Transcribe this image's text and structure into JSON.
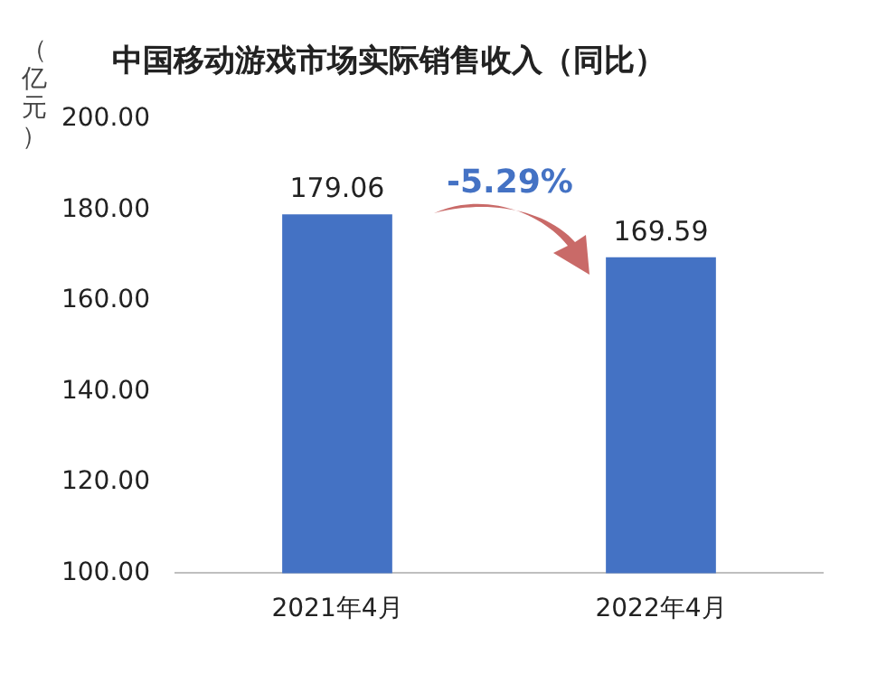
{
  "chart_data": {
    "type": "bar",
    "title": "中国移动游戏市场实际销售收入（同比）",
    "ylabel": "（亿元）",
    "categories": [
      "2021年4月",
      "2022年4月"
    ],
    "values": [
      179.06,
      169.59
    ],
    "color": "#4472c4",
    "ylim": [
      100,
      200
    ],
    "yticks": [
      {
        "value": 100,
        "label": "100.00"
      },
      {
        "value": 120,
        "label": "120.00"
      },
      {
        "value": 140,
        "label": "140.00"
      },
      {
        "value": 160,
        "label": "160.00"
      },
      {
        "value": 180,
        "label": "180.00"
      },
      {
        "value": 200,
        "label": "200.00"
      }
    ],
    "data_labels": true,
    "grid": false,
    "legend": false,
    "annotations": [
      "-5.29%"
    ]
  }
}
